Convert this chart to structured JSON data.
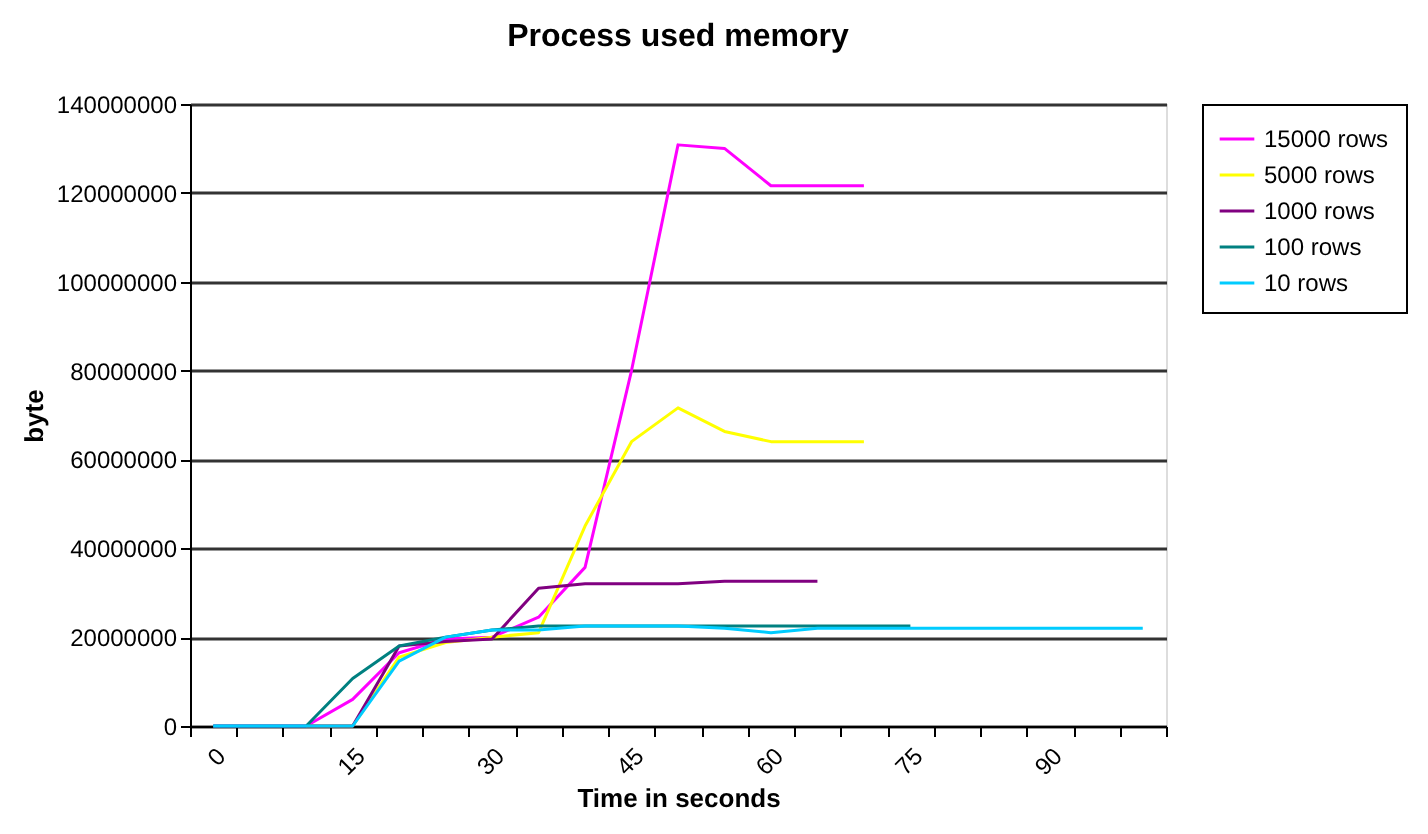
{
  "chart_data": {
    "type": "line",
    "title": "Process used memory",
    "xlabel": "Time in seconds",
    "ylabel": "byte",
    "categories": [
      "0",
      null,
      null,
      "15",
      null,
      null,
      "30",
      null,
      null,
      "45",
      null,
      null,
      "60",
      null,
      null,
      "75",
      null,
      null,
      "90",
      null,
      null
    ],
    "series": [
      {
        "name": "15000 rows",
        "color": "#ff00ff",
        "values": [
          0,
          0,
          0,
          6000000,
          16500000,
          19600000,
          20000000,
          24500000,
          35700000,
          80000000,
          130800000,
          130000000,
          121600000,
          121600000,
          121600000,
          null,
          null,
          null,
          null,
          null,
          null
        ]
      },
      {
        "name": "5000 rows",
        "color": "#ffff00",
        "values": [
          null,
          null,
          0,
          0,
          15500000,
          18800000,
          20000000,
          21000000,
          45000000,
          64000000,
          71600000,
          66300000,
          64000000,
          64000000,
          64000000,
          null,
          null,
          null,
          null,
          null,
          null
        ]
      },
      {
        "name": "1000 rows",
        "color": "#800080",
        "values": [
          null,
          null,
          0,
          0,
          18000000,
          19000000,
          19600000,
          31000000,
          32000000,
          32000000,
          32000000,
          32600000,
          32600000,
          32600000,
          null,
          null,
          null,
          null,
          null,
          null,
          null
        ]
      },
      {
        "name": "100 rows",
        "color": "#008080",
        "values": [
          0,
          0,
          0,
          10700000,
          18000000,
          20000000,
          21600000,
          22500000,
          22500000,
          22500000,
          22500000,
          22500000,
          22500000,
          22500000,
          22500000,
          22500000,
          null,
          null,
          null,
          null,
          null
        ]
      },
      {
        "name": "10 rows",
        "color": "#00ccff",
        "values": [
          0,
          0,
          0,
          0,
          14600000,
          20000000,
          21600000,
          21600000,
          22500000,
          22500000,
          22500000,
          22000000,
          21000000,
          22000000,
          22000000,
          22000000,
          22000000,
          22000000,
          22000000,
          22000000,
          22000000
        ]
      }
    ],
    "ylim": [
      0,
      140000000
    ],
    "yticks": [
      0,
      20000000,
      40000000,
      60000000,
      80000000,
      100000000,
      120000000,
      140000000
    ],
    "grid": "y",
    "legend": "right",
    "marker": "none",
    "line_style": "solid"
  }
}
